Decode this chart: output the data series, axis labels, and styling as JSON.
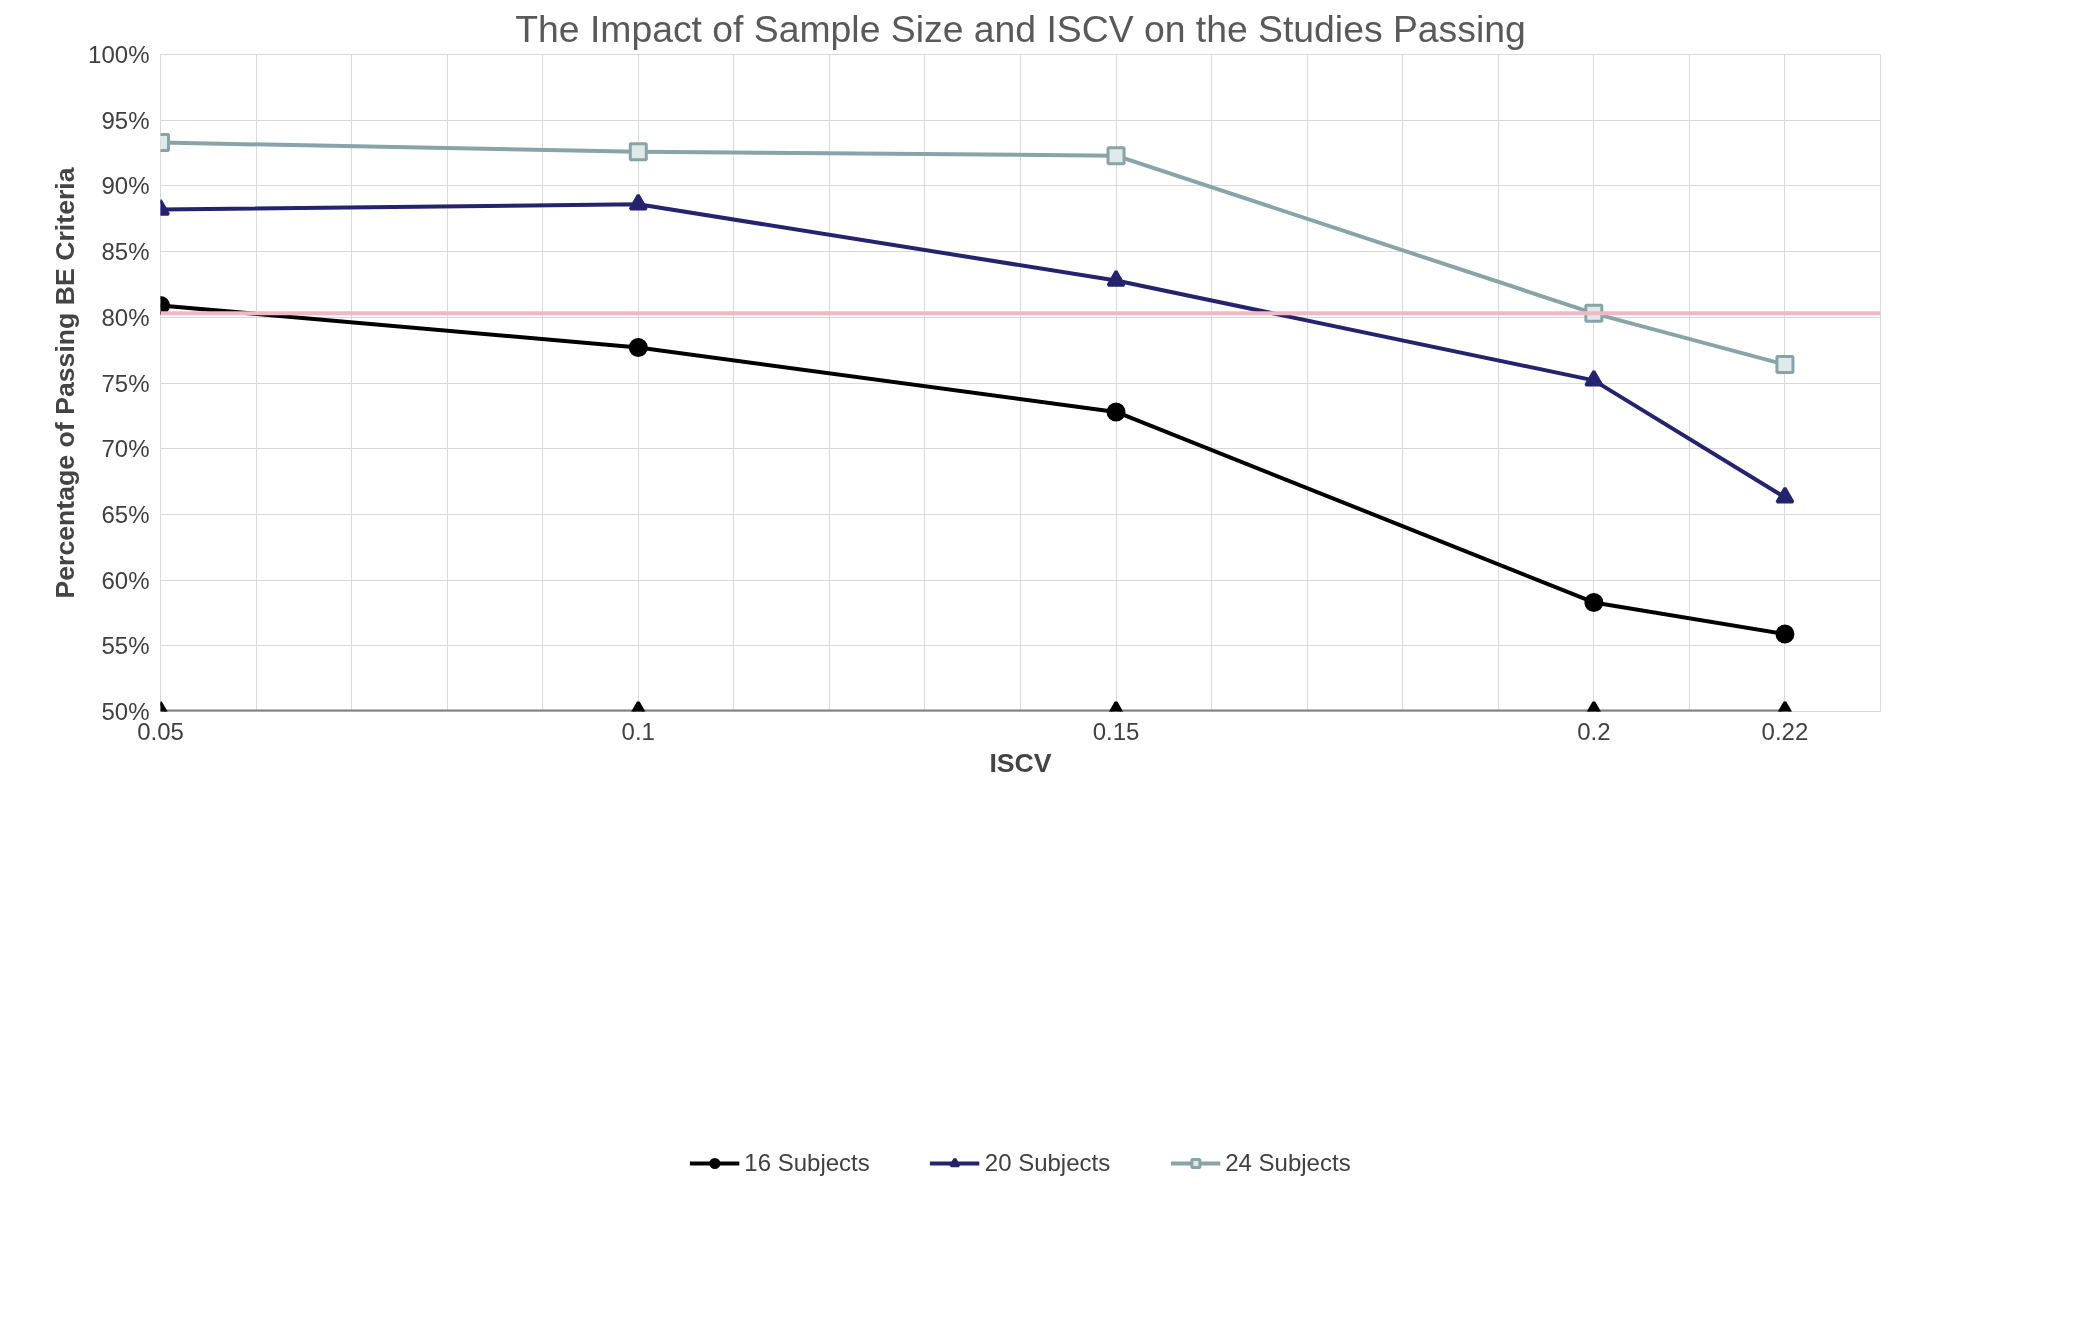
{
  "chart_data": {
    "type": "line",
    "title": "The Impact of Sample Size and ISCV on the Studies Passing",
    "xlabel": "ISCV",
    "ylabel": "Percentage of Passing BE Criteria",
    "x": [
      0.05,
      0.1,
      0.15,
      0.2,
      0.22
    ],
    "series": [
      {
        "name": "16 Subjects",
        "color": "#000000",
        "marker": "circle",
        "values": [
          80.9,
          77.7,
          72.8,
          58.3,
          55.9
        ]
      },
      {
        "name": "20 Subjects",
        "color": "#23236e",
        "marker": "triangle",
        "values": [
          88.2,
          88.6,
          82.8,
          75.2,
          66.3
        ]
      },
      {
        "name": "24 Subjects",
        "color": "#88a4a8",
        "marker": "square",
        "values": [
          93.3,
          92.6,
          92.3,
          80.3,
          76.4
        ]
      },
      {
        "color": "#808080",
        "marker": "triangle",
        "values": [
          50,
          50,
          50,
          50,
          50
        ]
      }
    ],
    "xlim": [
      0.05,
      0.23
    ],
    "xticks": [
      0.05,
      {
        "value": 0.06,
        "label": null
      },
      {
        "value": 0.07,
        "label": null
      },
      {
        "value": 0.08,
        "label": null
      },
      {
        "value": 0.09,
        "label": null
      },
      0.1,
      {
        "value": 0.11,
        "label": null
      },
      {
        "value": 0.12,
        "label": null
      },
      {
        "value": 0.13,
        "label": null
      },
      {
        "value": 0.14,
        "label": null
      },
      0.15,
      {
        "value": 0.16,
        "label": null
      },
      {
        "value": 0.17,
        "label": null
      },
      {
        "value": 0.18,
        "label": null
      },
      {
        "value": 0.19,
        "label": null
      },
      0.2,
      {
        "value": 0.21,
        "label": null
      },
      0.22,
      {
        "value": 0.23,
        "label": null
      }
    ],
    "ylim": [
      50,
      100
    ],
    "yticks": [
      {
        "value": 50,
        "label": "50%"
      },
      {
        "value": 55,
        "label": "55%"
      },
      {
        "value": 60,
        "label": "60%"
      },
      {
        "value": 65,
        "label": "65%"
      },
      {
        "value": 70,
        "label": "70%"
      },
      {
        "value": 75,
        "label": "75%"
      },
      {
        "value": 80,
        "label": "80%"
      },
      {
        "value": 85,
        "label": "85%"
      },
      {
        "value": 90,
        "label": "90%"
      },
      {
        "value": 95,
        "label": "95%"
      },
      {
        "value": 100,
        "label": "100%"
      }
    ],
    "ref_lines": [
      {
        "axis": "y",
        "value": 80.3,
        "color": "#f4b6c2"
      }
    ],
    "grid": true,
    "legend": "bottom"
  }
}
